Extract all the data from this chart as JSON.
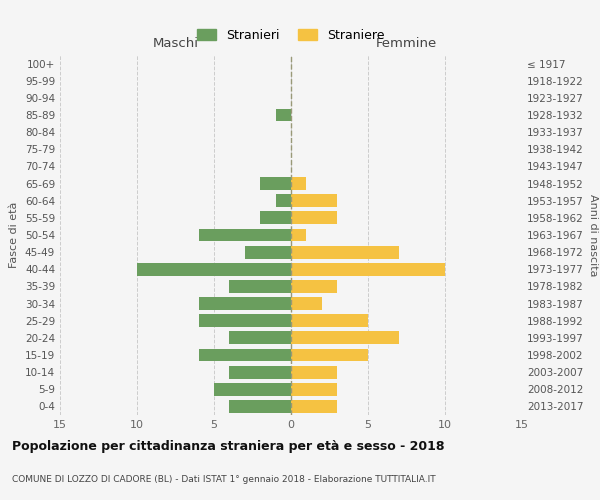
{
  "age_groups": [
    "0-4",
    "5-9",
    "10-14",
    "15-19",
    "20-24",
    "25-29",
    "30-34",
    "35-39",
    "40-44",
    "45-49",
    "50-54",
    "55-59",
    "60-64",
    "65-69",
    "70-74",
    "75-79",
    "80-84",
    "85-89",
    "90-94",
    "95-99",
    "100+"
  ],
  "birth_years": [
    "2013-2017",
    "2008-2012",
    "2003-2007",
    "1998-2002",
    "1993-1997",
    "1988-1992",
    "1983-1987",
    "1978-1982",
    "1973-1977",
    "1968-1972",
    "1963-1967",
    "1958-1962",
    "1953-1957",
    "1948-1952",
    "1943-1947",
    "1938-1942",
    "1933-1937",
    "1928-1932",
    "1923-1927",
    "1918-1922",
    "≤ 1917"
  ],
  "maschi": [
    4,
    5,
    4,
    6,
    4,
    6,
    6,
    4,
    10,
    3,
    6,
    2,
    1,
    2,
    0,
    0,
    0,
    1,
    0,
    0,
    0
  ],
  "femmine": [
    3,
    3,
    3,
    5,
    7,
    5,
    2,
    3,
    10,
    7,
    1,
    3,
    3,
    1,
    0,
    0,
    0,
    0,
    0,
    0,
    0
  ],
  "male_color": "#6a9e5e",
  "female_color": "#f5c242",
  "bar_height": 0.75,
  "xlim": 15,
  "xlabel_left": "Maschi",
  "xlabel_right": "Femmine",
  "ylabel_left": "Fasce di età",
  "ylabel_right": "Anni di nascita",
  "legend_male": "Stranieri",
  "legend_female": "Straniere",
  "title": "Popolazione per cittadinanza straniera per età e sesso - 2018",
  "subtitle": "COMUNE DI LOZZO DI CADORE (BL) - Dati ISTAT 1° gennaio 2018 - Elaborazione TUTTITALIA.IT",
  "bg_color": "#f5f5f5",
  "grid_color": "#cccccc"
}
